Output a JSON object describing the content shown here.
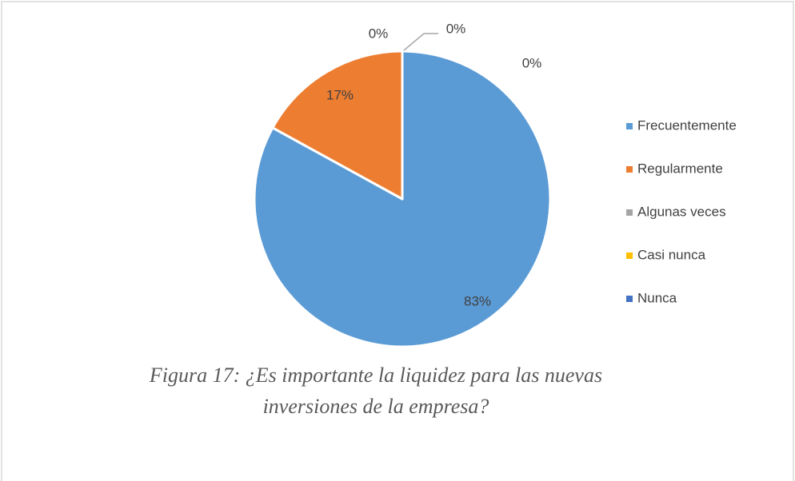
{
  "chart_data": {
    "type": "pie",
    "categories": [
      "Frecuentemente",
      "Regularmente",
      "Algunas veces",
      "Casi nunca",
      "Nunca"
    ],
    "values": [
      83,
      17,
      0,
      0,
      0
    ],
    "value_labels": [
      "83%",
      "17%",
      "0%",
      "0%",
      "0%"
    ],
    "colors": [
      "#5b9bd5",
      "#ed7d31",
      "#a5a5a5",
      "#ffc000",
      "#4472c4"
    ],
    "legend": "right",
    "caption": "Figura 17: ¿Es importante la liquidez para las nuevas inversiones de la empresa?"
  }
}
